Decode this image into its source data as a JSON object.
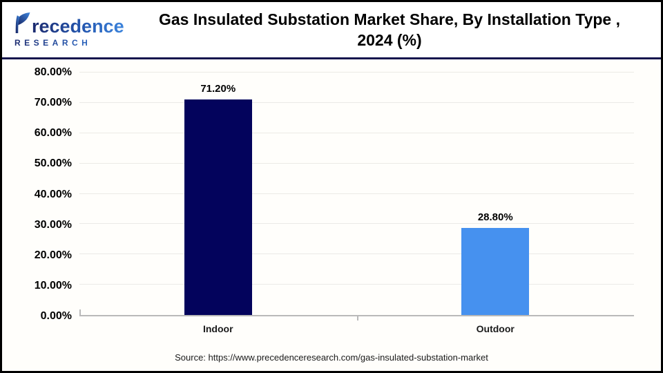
{
  "header": {
    "logo": {
      "brand_line1": "recedence",
      "brand_line2": "RESEARCH",
      "icon": "leaf-p-logo",
      "gradient_start": "#1c2a6e",
      "gradient_end": "#3d85dd"
    },
    "title_line1": "Gas Insulated Substation Market Share, By Installation Type ,",
    "title_line2": "2024 (%)"
  },
  "chart_data": {
    "type": "bar",
    "title": "Gas Insulated Substation Market Share, By Installation Type , 2024 (%)",
    "categories": [
      "Indoor",
      "Outdoor"
    ],
    "values": [
      71.2,
      28.8
    ],
    "value_labels": [
      "71.20%",
      "28.80%"
    ],
    "bar_colors": [
      "#03035c",
      "#4691ef"
    ],
    "xlabel": "",
    "ylabel": "",
    "ylim": [
      0,
      80
    ],
    "ytick_labels": [
      "0.00%",
      "10.00%",
      "20.00%",
      "30.00%",
      "40.00%",
      "50.00%",
      "60.00%",
      "70.00%",
      "80.00%"
    ],
    "grid": true,
    "gridline_color": "#ebeae6",
    "axis_color": "#b9b9b9",
    "legend": "none"
  },
  "footer": {
    "source": "Source: https://www.precedenceresearch.com/gas-insulated-substation-market"
  }
}
